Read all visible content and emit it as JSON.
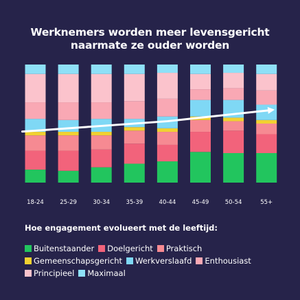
{
  "chart_data": {
    "type": "bar",
    "stacked": true,
    "title_lines": [
      "Werknemers worden meer levensgericht",
      "naarmate ze ouder worden"
    ],
    "categories": [
      "18-24",
      "25-29",
      "30-34",
      "35-39",
      "40-44",
      "45-49",
      "50-54",
      "55+"
    ],
    "ylim": [
      0,
      100
    ],
    "series": [
      {
        "name": "Buitenstaander",
        "color": "#22c55e",
        "values": [
          11,
          10,
          13,
          16,
          18,
          26,
          25,
          25
        ]
      },
      {
        "name": "Doelgericht",
        "color": "#f2637b",
        "values": [
          16,
          17,
          15,
          17,
          14,
          17,
          19,
          16
        ]
      },
      {
        "name": "Praktisch",
        "color": "#f68a92",
        "values": [
          13,
          13,
          12,
          11,
          11,
          10,
          8,
          9
        ]
      },
      {
        "name": "Gemeenschapsgericht",
        "color": "#f1d131",
        "values": [
          3,
          3,
          3,
          3,
          3,
          3,
          3,
          3
        ]
      },
      {
        "name": "Werkverslaafd",
        "color": "#7fd8f5",
        "values": [
          11,
          10,
          11,
          7,
          10,
          14,
          15,
          13
        ]
      },
      {
        "name": "Enthousiast",
        "color": "#f9a8b4",
        "values": [
          14,
          15,
          14,
          15,
          15,
          9,
          10,
          12
        ]
      },
      {
        "name": "Principieel",
        "color": "#fbc3cc",
        "values": [
          24,
          24,
          24,
          23,
          22,
          13,
          13,
          14
        ]
      },
      {
        "name": "Maximaal",
        "color": "#8ee0f7",
        "values": [
          8,
          8,
          8,
          8,
          7,
          8,
          7,
          8
        ]
      }
    ],
    "trend_line": {
      "color": "#ffffff",
      "values": [
        44,
        46,
        48,
        50,
        52,
        55,
        58,
        61
      ]
    },
    "legend_title": "Hoe engagement evolueert met de leeftijd:",
    "legend_position": "bottom",
    "grid": false
  }
}
